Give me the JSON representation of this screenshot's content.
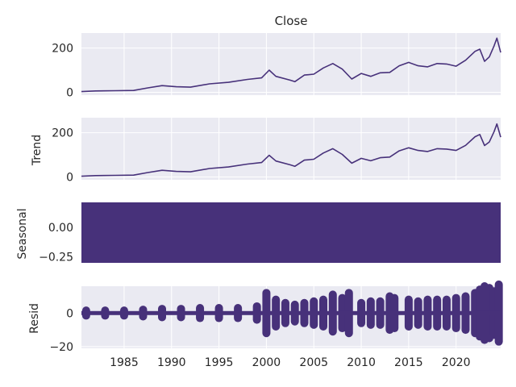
{
  "chart_data": [
    {
      "type": "line",
      "title": "Close",
      "xlabel": "",
      "ylabel": "",
      "xlim": [
        1980.5,
        2024.7
      ],
      "ylim": [
        -13,
        268
      ],
      "yticks": [
        0,
        200
      ],
      "ytick_labels": [
        "0",
        "200"
      ],
      "grid": true,
      "series": [
        {
          "x": [
            1980.5,
            1982,
            1984,
            1986,
            1987.5,
            1989,
            1990.5,
            1992,
            1994,
            1996,
            1998,
            1999.5,
            2000.3,
            2001,
            2002.5,
            2003,
            2004,
            2005,
            2006,
            2007,
            2008,
            2009,
            2010,
            2011,
            2012,
            2013,
            2014,
            2015,
            2016,
            2017,
            2018,
            2019,
            2020,
            2021,
            2022,
            2022.5,
            2023,
            2023.5,
            2024,
            2024.3,
            2024.7
          ],
          "y": [
            3,
            6,
            7,
            8,
            20,
            30,
            25,
            23,
            38,
            45,
            58,
            65,
            100,
            72,
            55,
            48,
            78,
            82,
            110,
            130,
            105,
            60,
            85,
            72,
            88,
            90,
            120,
            135,
            120,
            115,
            130,
            128,
            118,
            145,
            185,
            195,
            140,
            160,
            210,
            245,
            180
          ]
        }
      ]
    },
    {
      "type": "line",
      "title": "",
      "xlabel": "",
      "ylabel": "Trend",
      "xlim": [
        1980.5,
        2024.7
      ],
      "ylim": [
        -13,
        268
      ],
      "yticks": [
        0,
        200
      ],
      "ytick_labels": [
        "0",
        "200"
      ],
      "grid": true,
      "series": [
        {
          "x": [
            1980.5,
            1982,
            1984,
            1986,
            1987.5,
            1989,
            1990.5,
            1992,
            1994,
            1996,
            1998,
            1999.5,
            2000.3,
            2001,
            2002.5,
            2003,
            2004,
            2005,
            2006,
            2007,
            2008,
            2009,
            2010,
            2011,
            2012,
            2013,
            2014,
            2015,
            2016,
            2017,
            2018,
            2019,
            2020,
            2021,
            2022,
            2022.5,
            2023,
            2023.5,
            2024,
            2024.3,
            2024.7
          ],
          "y": [
            3,
            6,
            7,
            8,
            20,
            30,
            25,
            23,
            38,
            45,
            58,
            65,
            98,
            72,
            55,
            48,
            76,
            80,
            108,
            128,
            102,
            62,
            84,
            73,
            87,
            90,
            118,
            132,
            120,
            115,
            128,
            126,
            120,
            143,
            182,
            192,
            142,
            158,
            205,
            240,
            180
          ]
        }
      ]
    },
    {
      "type": "area",
      "title": "",
      "xlabel": "",
      "ylabel": "Seasonal",
      "xlim": [
        1980.5,
        2024.7
      ],
      "ylim": [
        -0.3,
        0.21
      ],
      "yticks": [
        0.0,
        -0.25
      ],
      "ytick_labels": [
        "0.00",
        "−0.25"
      ],
      "grid": true,
      "series": [
        {
          "x": [
            1980.5,
            2024.7
          ],
          "y_band": [
            -0.3,
            0.21
          ]
        }
      ]
    },
    {
      "type": "scatter",
      "title": "",
      "xlabel": "",
      "ylabel": "Resid",
      "xlim": [
        1980.5,
        2024.7
      ],
      "ylim": [
        -21,
        16
      ],
      "yticks": [
        0,
        -20
      ],
      "ytick_labels": [
        "0",
        "−20"
      ],
      "xticks": [
        1985,
        1990,
        1995,
        2000,
        2005,
        2010,
        2015,
        2020
      ],
      "xtick_labels": [
        "1985",
        "1990",
        "1995",
        "2000",
        "2005",
        "2010",
        "2015",
        "2020"
      ],
      "grid": true,
      "series": [
        {
          "x": [
            1981,
            1983,
            1985,
            1987,
            1989,
            1991,
            1993,
            1995,
            1997,
            1999,
            2000,
            2001,
            2002,
            2003,
            2004,
            2005,
            2006,
            2007,
            2008,
            2008.7,
            2010,
            2011,
            2012,
            2013,
            2013.5,
            2015,
            2016,
            2017,
            2018,
            2019,
            2020,
            2021,
            2022,
            2022.5,
            2023,
            2023.5,
            2024,
            2024.5
          ],
          "amplitude": [
            1.5,
            1.5,
            1.5,
            2,
            2.5,
            2.5,
            3,
            3,
            3,
            4,
            12,
            8,
            6,
            5,
            6,
            7,
            8,
            11,
            9,
            12,
            6,
            7,
            7,
            10,
            9,
            8,
            7,
            8,
            8,
            8,
            9,
            10,
            12,
            14,
            16,
            15,
            13,
            17
          ]
        }
      ]
    }
  ],
  "colors": {
    "series": "#47317a",
    "panel_bg": "#eaeaf2",
    "grid": "#ffffff"
  }
}
